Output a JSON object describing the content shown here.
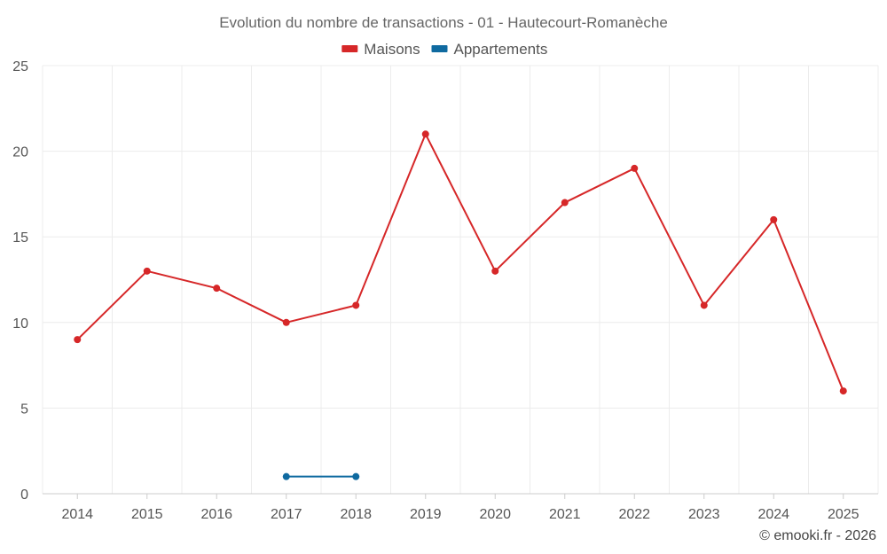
{
  "chart_data": {
    "type": "line",
    "title": "Evolution du nombre de transactions - 01 - Hautecourt-Romanèche",
    "x": [
      "2014",
      "2015",
      "2016",
      "2017",
      "2018",
      "2019",
      "2020",
      "2021",
      "2022",
      "2023",
      "2024",
      "2025"
    ],
    "series": [
      {
        "name": "Maisons",
        "color": "#d62728",
        "values": [
          9,
          13,
          12,
          10,
          11,
          21,
          13,
          17,
          19,
          11,
          16,
          6
        ]
      },
      {
        "name": "Appartements",
        "color": "#0f6aa0",
        "values": [
          null,
          null,
          null,
          1,
          1,
          null,
          null,
          null,
          null,
          null,
          null,
          null
        ]
      }
    ],
    "ylim": [
      0,
      25
    ],
    "yticks": [
      0,
      5,
      10,
      15,
      20,
      25
    ],
    "grid": true,
    "legend_position": "top-center",
    "credit": "© emooki.fr - 2026"
  }
}
